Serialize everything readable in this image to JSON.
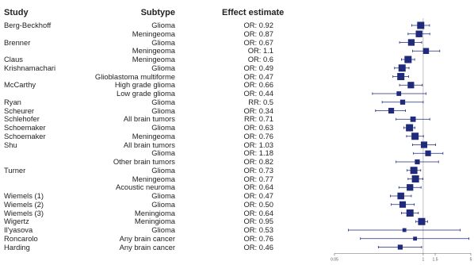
{
  "headers": {
    "study": "Study",
    "subtype": "Subtype",
    "estimate": "Effect estimate"
  },
  "chart_data": {
    "type": "scatter",
    "x_scale": "log",
    "xlim": [
      0.05,
      5
    ],
    "reference_line": 1,
    "x_ticks": [
      "0.05",
      "1",
      "1.5",
      "5"
    ],
    "rows": [
      {
        "study": "Berg-Beckhoff",
        "subtype": "Glioma",
        "estimate": "OR: 0.92",
        "value": 0.92,
        "lo": 0.68,
        "hi": 1.24
      },
      {
        "study": "",
        "subtype": "Meningeoma",
        "estimate": "OR: 0.87",
        "value": 0.87,
        "lo": 0.6,
        "hi": 1.25
      },
      {
        "study": "Brenner",
        "subtype": "Glioma",
        "estimate": "OR: 0.67",
        "value": 0.67,
        "lo": 0.45,
        "hi": 0.95
      },
      {
        "study": "",
        "subtype": "Meningeoma",
        "estimate": "OR: 1.1",
        "value": 1.1,
        "lo": 0.7,
        "hi": 1.75
      },
      {
        "study": "Claus",
        "subtype": "Meningeoma",
        "estimate": "OR: 0.6",
        "value": 0.6,
        "lo": 0.48,
        "hi": 0.75
      },
      {
        "study": "Krishnamachari",
        "subtype": "Glioma",
        "estimate": "OR: 0.49",
        "value": 0.49,
        "lo": 0.38,
        "hi": 0.62
      },
      {
        "study": "",
        "subtype": "Glioblastoma multiforme",
        "estimate": "OR: 0.47",
        "value": 0.47,
        "lo": 0.36,
        "hi": 0.61
      },
      {
        "study": "McCarthy",
        "subtype": "High grade glioma",
        "estimate": "OR: 0.66",
        "value": 0.66,
        "lo": 0.45,
        "hi": 0.97
      },
      {
        "study": "",
        "subtype": "Low grade glioma",
        "estimate": "OR: 0.44",
        "value": 0.44,
        "lo": 0.18,
        "hi": 1.1
      },
      {
        "study": "Ryan",
        "subtype": "Glioma",
        "estimate": "RR: 0.5",
        "value": 0.5,
        "lo": 0.25,
        "hi": 1.0
      },
      {
        "study": "Scheurer",
        "subtype": "Glioma",
        "estimate": "OR: 0.34",
        "value": 0.34,
        "lo": 0.2,
        "hi": 0.55
      },
      {
        "study": "Schlehofer",
        "subtype": "All brain tumors",
        "estimate": "RR: 0.71",
        "value": 0.71,
        "lo": 0.4,
        "hi": 1.25
      },
      {
        "study": "Schoemaker",
        "subtype": "Glioma",
        "estimate": "OR: 0.63",
        "value": 0.63,
        "lo": 0.52,
        "hi": 0.76
      },
      {
        "study": "Schoemaker",
        "subtype": "Meningeoma",
        "estimate": "OR: 0.76",
        "value": 0.76,
        "lo": 0.57,
        "hi": 1.01
      },
      {
        "study": "Shu",
        "subtype": "All brain tumors",
        "estimate": "OR: 1.03",
        "value": 1.03,
        "lo": 0.7,
        "hi": 1.52
      },
      {
        "study": "",
        "subtype": "Glioma",
        "estimate": "OR: 1.18",
        "value": 1.18,
        "lo": 0.72,
        "hi": 1.95
      },
      {
        "study": "",
        "subtype": "Other brain tumors",
        "estimate": "OR: 0.82",
        "value": 0.82,
        "lo": 0.4,
        "hi": 1.68
      },
      {
        "study": "Turner",
        "subtype": "Glioma",
        "estimate": "OR: 0.73",
        "value": 0.73,
        "lo": 0.58,
        "hi": 0.92
      },
      {
        "study": "",
        "subtype": "Meningeoma",
        "estimate": "OR: 0.77",
        "value": 0.77,
        "lo": 0.6,
        "hi": 0.99
      },
      {
        "study": "",
        "subtype": "Acoustic neuroma",
        "estimate": "OR: 0.64",
        "value": 0.64,
        "lo": 0.44,
        "hi": 0.93
      },
      {
        "study": "Wiemels (1)",
        "subtype": "Glioma",
        "estimate": "OR: 0.47",
        "value": 0.47,
        "lo": 0.33,
        "hi": 0.67
      },
      {
        "study": "Wiemels (2)",
        "subtype": "Glioma",
        "estimate": "OR: 0.50",
        "value": 0.5,
        "lo": 0.34,
        "hi": 0.74
      },
      {
        "study": "Wiemels (3)",
        "subtype": "Meningioma",
        "estimate": "OR: 0.64",
        "value": 0.64,
        "lo": 0.48,
        "hi": 0.85
      },
      {
        "study": "Wigertz",
        "subtype": "Meningioma",
        "estimate": "OR: 0.95",
        "value": 0.95,
        "lo": 0.78,
        "hi": 1.16
      },
      {
        "study": "Il'yasova",
        "subtype": "Glioma",
        "estimate": "OR: 0.53",
        "value": 0.53,
        "lo": 0.08,
        "hi": 3.5
      },
      {
        "study": "Roncarolo",
        "subtype": "Any brain cancer",
        "estimate": "OR: 0.76",
        "value": 0.76,
        "lo": 0.12,
        "hi": 4.7
      },
      {
        "study": "Harding",
        "subtype": "Any brain cancer",
        "estimate": "OR: 0.46",
        "value": 0.46,
        "lo": 0.22,
        "hi": 0.95
      }
    ]
  },
  "colors": {
    "marker": "#1f2a7a",
    "ci_line": "#1f2a7a",
    "reference": "#b0b0b0",
    "axis": "#666666"
  }
}
